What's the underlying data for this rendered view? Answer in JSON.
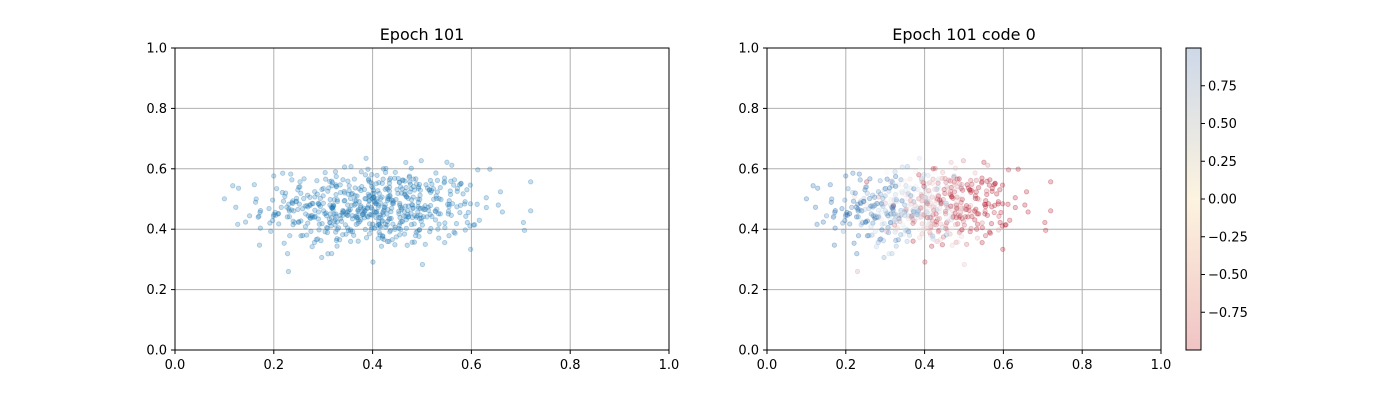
{
  "chart_data": [
    {
      "type": "scatter",
      "title": "Epoch 101",
      "xlabel": "",
      "ylabel": "",
      "xlim": [
        0,
        1
      ],
      "ylim": [
        0,
        1
      ],
      "xticks": [
        "0.0",
        "0.2",
        "0.4",
        "0.6",
        "0.8",
        "1.0"
      ],
      "yticks": [
        "0.0",
        "0.2",
        "0.4",
        "0.6",
        "0.8",
        "1.0"
      ],
      "grid": true,
      "marker_color": "#1f77b4",
      "marker_alpha": 0.25,
      "points_approx_count": 600,
      "cloud_center": [
        0.4,
        0.47
      ],
      "cloud_x_range": [
        0.1,
        0.72
      ],
      "cloud_y_range": [
        0.26,
        0.65
      ]
    },
    {
      "type": "scatter",
      "title": "Epoch 101 code 0",
      "xlabel": "",
      "ylabel": "",
      "xlim": [
        0,
        1
      ],
      "ylim": [
        0,
        1
      ],
      "xticks": [
        "0.0",
        "0.2",
        "0.4",
        "0.6",
        "0.8",
        "1.0"
      ],
      "yticks": [
        "0.0",
        "0.2",
        "0.4",
        "0.6",
        "0.8",
        "1.0"
      ],
      "grid": true,
      "colormap": "RdBu",
      "marker_alpha": 0.25,
      "color_trend": "negative (red) on the right, positive (blue) on the left",
      "colorbar": {
        "range": [
          -1,
          1
        ],
        "ticks": [
          "0.75",
          "0.50",
          "0.25",
          "0.00",
          "−0.25",
          "−0.50",
          "−0.75"
        ],
        "tick_values": [
          0.75,
          0.5,
          0.25,
          0.0,
          -0.25,
          -0.5,
          -0.75
        ],
        "top_color": "#cdd8e8",
        "mid_color": "#fdf3e0",
        "bottom_color": "#f0c4c4"
      }
    }
  ]
}
